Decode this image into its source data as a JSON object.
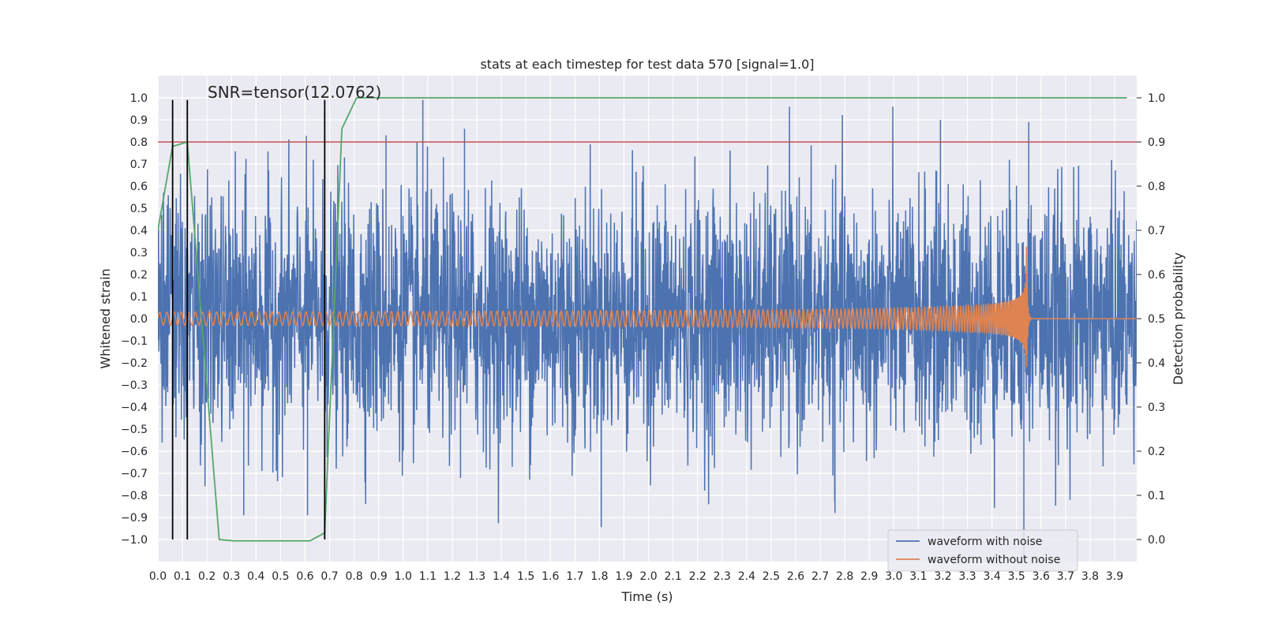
{
  "chart_data": {
    "type": "line",
    "title": "stats at each timestep for test data 570 [signal=1.0]",
    "xlabel": "Time (s)",
    "ylabel": "Whitened strain",
    "y2label": "Detection probability",
    "annotation": "SNR=tensor(12.0762)",
    "xlim": [
      0.0,
      3.99
    ],
    "ylim": [
      -1.1,
      1.1
    ],
    "y2lim": [
      -0.05,
      1.05
    ],
    "x_tick_labels": [
      "0.0",
      "0.1",
      "0.2",
      "0.3",
      "0.4",
      "0.5",
      "0.6",
      "0.7",
      "0.8",
      "0.9",
      "1.0",
      "1.1",
      "1.2",
      "1.3",
      "1.4",
      "1.5",
      "1.6",
      "1.7",
      "1.8",
      "1.9",
      "2.0",
      "2.1",
      "2.2",
      "2.3",
      "2.4",
      "2.5",
      "2.6",
      "2.7",
      "2.8",
      "2.9",
      "3.0",
      "3.1",
      "3.2",
      "3.3",
      "3.4",
      "3.5",
      "3.6",
      "3.7",
      "3.8",
      "3.9"
    ],
    "y_tick_labels": [
      "1.0",
      "0.9",
      "0.8",
      "0.7",
      "0.6",
      "0.5",
      "0.4",
      "0.3",
      "0.2",
      "0.1",
      "0.0",
      "−0.1",
      "−0.2",
      "−0.3",
      "−0.4",
      "−0.5",
      "−0.6",
      "−0.7",
      "−0.8",
      "−0.9",
      "−1.0"
    ],
    "y2_tick_labels": [
      "1.0",
      "0.9",
      "0.8",
      "0.7",
      "0.6",
      "0.5",
      "0.4",
      "0.3",
      "0.2",
      "0.1",
      "0.0"
    ],
    "grid": true,
    "legend_position": "lower-right",
    "series": [
      {
        "name": "waveform with noise",
        "axis": "left",
        "color": "#4c72b0",
        "description_kind": "noisy time series",
        "approx_amplitude": 0.45,
        "peaks": [
          {
            "x": 1.08,
            "y": 0.99
          },
          {
            "x": 0.93,
            "y": 0.83
          },
          {
            "x": 1.25,
            "y": 0.86
          },
          {
            "x": 3.19,
            "y": 0.9
          },
          {
            "x": 3.55,
            "y": 0.89
          },
          {
            "x": 3.53,
            "y": -1.09
          },
          {
            "x": 0.35,
            "y": -0.89
          },
          {
            "x": 0.61,
            "y": -0.89
          },
          {
            "x": 2.76,
            "y": -0.88
          }
        ]
      },
      {
        "name": "waveform without noise",
        "axis": "left",
        "color": "#dd8452",
        "description_kind": "chirp",
        "start_amplitude": 0.03,
        "peak_amplitude": 0.38,
        "merger_time": 3.54,
        "start_frequency_hz": 34,
        "end_frequency_hz": 120
      },
      {
        "name": "detection probability",
        "axis": "right",
        "color": "#55a868",
        "x": [
          0.0,
          0.06,
          0.12,
          0.25,
          0.31,
          0.62,
          0.68,
          0.75,
          0.81,
          3.95
        ],
        "y": [
          0.7,
          0.89,
          0.9,
          0.0,
          -0.003,
          -0.003,
          0.015,
          0.93,
          1.0,
          1.0
        ]
      }
    ],
    "threshold": {
      "axis": "right",
      "value": 0.9,
      "color": "#c44e52"
    },
    "vertical_markers": {
      "color": "#000000",
      "x": [
        0.06,
        0.12,
        0.68
      ],
      "y_top": 0.995,
      "y_bottom": 0.0
    }
  }
}
